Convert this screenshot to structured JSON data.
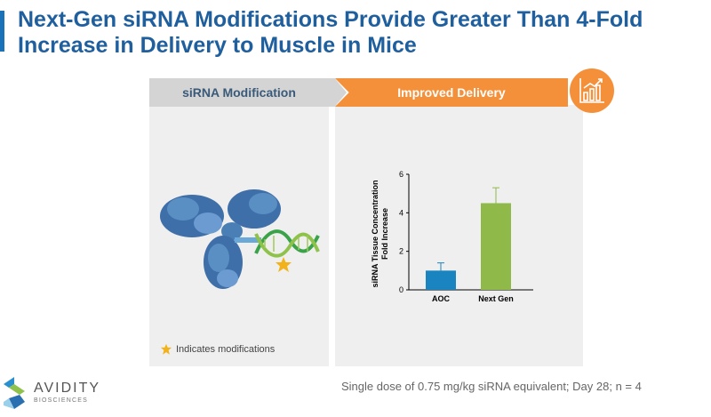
{
  "slide": {
    "title": "Next-Gen siRNA Modifications Provide Greater Than 4-Fold Increase in Delivery to Muscle in Mice",
    "left_header": "siRNA Modification",
    "right_header": "Improved Delivery",
    "legend_note": "Indicates modifications",
    "footnote": "Single dose of 0.75 mg/kg siRNA equivalent; Day 28; n = 4",
    "logo_name": "AVIDITY",
    "logo_sub": "BIOSCIENCES"
  },
  "colors": {
    "title": "#1f5f9e",
    "orange": "#f5903a",
    "bar_aoc": "#1a84c0",
    "bar_next_gen": "#8fba4a",
    "panel": "#efefef"
  },
  "icons": [
    "growth-chart-icon",
    "star-burst-icon",
    "avidity-logo-icon"
  ],
  "chart_data": {
    "type": "bar",
    "categories": [
      "AOC",
      "Next Gen"
    ],
    "values": [
      1.0,
      4.5
    ],
    "errors": [
      0.4,
      0.8
    ],
    "title": "",
    "xlabel": "",
    "ylabel": "siRNA Tissue Concentration Fold Increase",
    "ylabel_lines": [
      "siRNA Tissue Concentration",
      "Fold Increase"
    ],
    "ylim": [
      0,
      6
    ],
    "yticks": [
      "0",
      "2",
      "4",
      "6"
    ],
    "grid": false
  }
}
